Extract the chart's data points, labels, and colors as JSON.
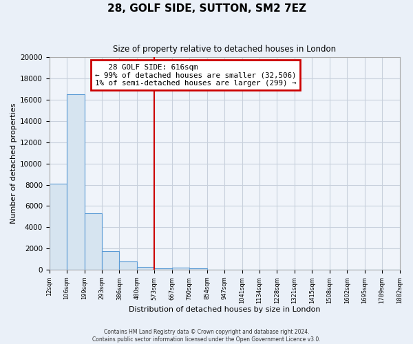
{
  "title": "28, GOLF SIDE, SUTTON, SM2 7EZ",
  "subtitle": "Size of property relative to detached houses in London",
  "xlabel": "Distribution of detached houses by size in London",
  "ylabel": "Number of detached properties",
  "bar_color": "#d6e4f0",
  "bar_edge_color": "#5b9bd5",
  "background_color": "#eaf0f8",
  "plot_bg_color": "#f0f4fa",
  "grid_color": "#c8d0dc",
  "vline_color": "#cc0000",
  "ylim": [
    0,
    20000
  ],
  "yticks": [
    0,
    2000,
    4000,
    6000,
    8000,
    10000,
    12000,
    14000,
    16000,
    18000,
    20000
  ],
  "bin_labels": [
    "12sqm",
    "106sqm",
    "199sqm",
    "293sqm",
    "386sqm",
    "480sqm",
    "573sqm",
    "667sqm",
    "760sqm",
    "854sqm",
    "947sqm",
    "1041sqm",
    "1134sqm",
    "1228sqm",
    "1321sqm",
    "1415sqm",
    "1508sqm",
    "1602sqm",
    "1695sqm",
    "1789sqm",
    "1882sqm"
  ],
  "bar_heights": [
    8100,
    16500,
    5300,
    1750,
    750,
    230,
    130,
    200,
    120,
    0,
    0,
    0,
    0,
    0,
    0,
    0,
    0,
    0,
    0,
    0
  ],
  "vline_x_index": 6,
  "annotation_title": "28 GOLF SIDE: 616sqm",
  "annotation_line1": "← 99% of detached houses are smaller (32,506)",
  "annotation_line2": "1% of semi-detached houses are larger (299) →",
  "footer_line1": "Contains HM Land Registry data © Crown copyright and database right 2024.",
  "footer_line2": "Contains public sector information licensed under the Open Government Licence v3.0."
}
